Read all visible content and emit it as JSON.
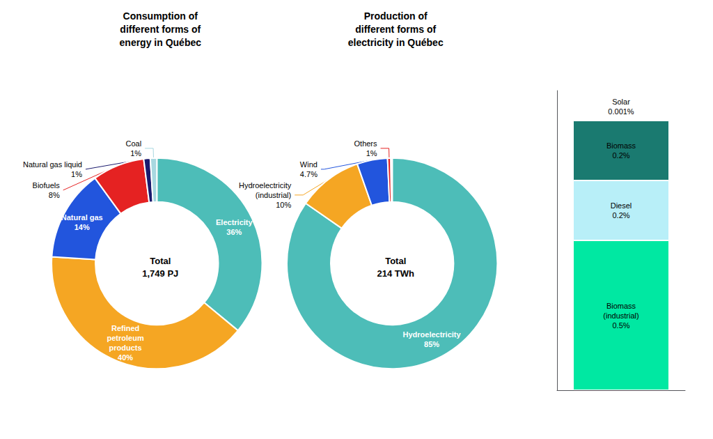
{
  "chart_data": [
    {
      "type": "pie",
      "title": "Consumption of\ndifferent forms of\nenergy in Québec",
      "annotations": [
        "Total\n1,749 PJ"
      ],
      "values": [
        36,
        40,
        14,
        8,
        1,
        1
      ],
      "value_labels": [
        "Electricity\n36%",
        "Refined\npetroleum\nproducts\n40%",
        "Natural gas\n14%",
        "Biofuels\n8%",
        "Natural gas liquid\n1%",
        "Coal\n1%"
      ],
      "colors": [
        "#4DBDB8",
        "#F5A623",
        "#2255DD",
        "#E52222",
        "#1A1A6E",
        "#A8D8E0"
      ],
      "data_labels": true
    },
    {
      "type": "pie",
      "title": "Production of\ndifferent forms of\nelectricity in Québec",
      "annotations": [
        "Total\n214 TWh"
      ],
      "values": [
        85,
        10,
        4.7,
        0.5,
        0.2,
        0.001
      ],
      "value_labels": [
        "Hydroelectricity\n85%",
        "Hydroelectricity\n(industrial)\n10%",
        "Wind\n4.7%",
        "Others\n1%",
        null,
        null
      ],
      "colors": [
        "#4DBDB8",
        "#F5A623",
        "#2255DD",
        "#E52222",
        "#E52222",
        "#E52222"
      ],
      "data_labels": true
    },
    {
      "type": "bar",
      "stacked": true,
      "categories": [
        null
      ],
      "series": [
        {
          "color": "#00E8A2",
          "values": [
            0.5
          ],
          "value_labels": [
            "Biomass\n(industrial)\n0.5%"
          ]
        },
        {
          "color": "#B8EFF8",
          "values": [
            0.2
          ],
          "value_labels": [
            "Diesel\n0.2%"
          ]
        },
        {
          "color": "#1A7A70",
          "values": [
            0.2
          ],
          "value_labels": [
            "Biomass\n0.2%"
          ]
        },
        {
          "color": "#FFFFFF",
          "values": [
            0.001
          ],
          "value_labels": [
            "Solar\n0.001%"
          ]
        }
      ],
      "ylim": [
        0,
        1
      ],
      "tick_labels": false,
      "grid": false,
      "data_labels": true
    }
  ]
}
